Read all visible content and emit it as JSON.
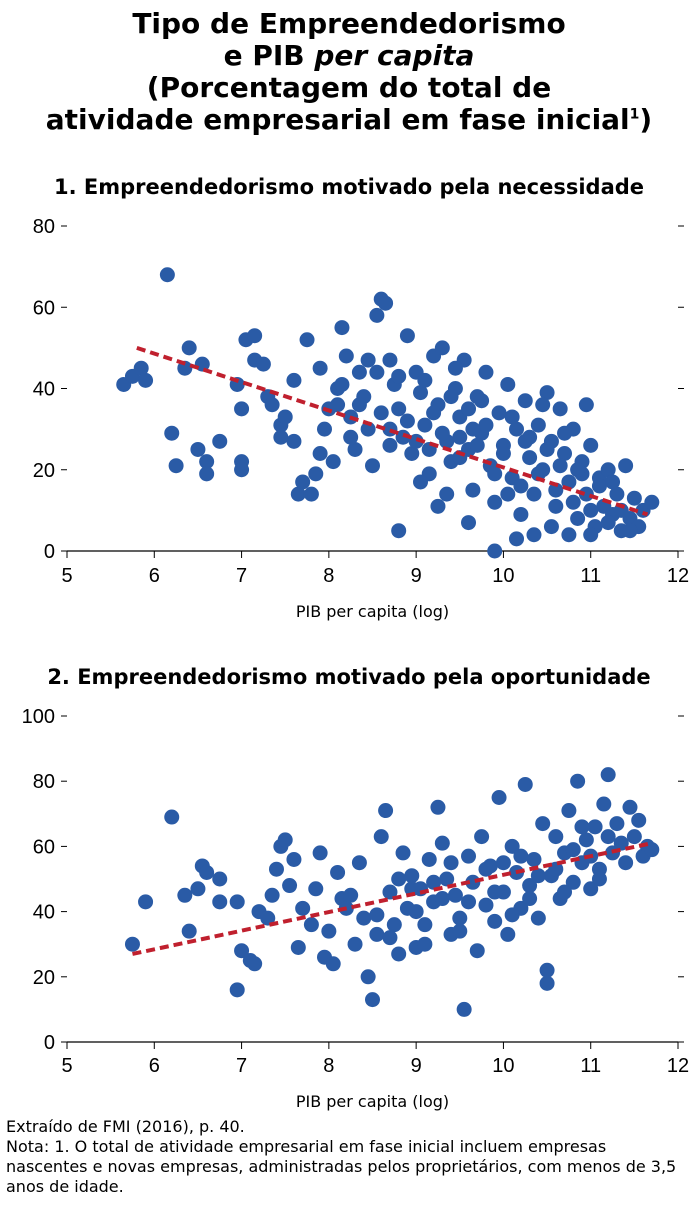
{
  "header": {
    "title_line1": "Tipo de Empreendedorismo",
    "title_line2_a": "e PIB ",
    "title_line2_b": "per capita",
    "title_line3": "(Porcentagem do total de",
    "title_line4": "atividade empresarial em fase inicial",
    "title_sup": "1",
    "title_line4_end": ")"
  },
  "footer": {
    "source": "Extraído de FMI (2016), p. 40.",
    "note": "Nota: 1. O total de atividade empresarial em fase inicial incluem empresas nascentes e novas empresas, administradas pelos proprietários, com menos de 3,5 anos de idade."
  },
  "colors": {
    "points": "#2a5ba6",
    "trend": "#c0202e"
  },
  "chart_data": [
    {
      "type": "scatter",
      "title": "1. Empreendedorismo motivado pela necessidade",
      "xlabel": "PIB per capita (log)",
      "ylabel": "",
      "xlim": [
        5,
        12
      ],
      "ylim": [
        0,
        80
      ],
      "xticks": [
        5,
        6,
        7,
        8,
        9,
        10,
        11,
        12
      ],
      "yticks": [
        0,
        20,
        40,
        60,
        80
      ],
      "trend": [
        [
          5.8,
          50
        ],
        [
          11.65,
          9
        ]
      ],
      "points": [
        [
          5.65,
          41
        ],
        [
          5.75,
          43
        ],
        [
          5.85,
          45
        ],
        [
          5.9,
          42
        ],
        [
          6.15,
          68
        ],
        [
          6.2,
          29
        ],
        [
          6.25,
          21
        ],
        [
          6.35,
          45
        ],
        [
          6.4,
          50
        ],
        [
          6.55,
          46
        ],
        [
          6.5,
          25
        ],
        [
          6.6,
          22
        ],
        [
          6.6,
          19
        ],
        [
          6.75,
          27
        ],
        [
          6.95,
          41
        ],
        [
          7.0,
          22
        ],
        [
          7.0,
          20
        ],
        [
          7.0,
          35
        ],
        [
          7.05,
          52
        ],
        [
          7.15,
          53
        ],
        [
          7.15,
          47
        ],
        [
          7.25,
          46
        ],
        [
          7.3,
          38
        ],
        [
          7.35,
          36
        ],
        [
          7.45,
          31
        ],
        [
          7.45,
          28
        ],
        [
          7.5,
          33
        ],
        [
          7.6,
          42
        ],
        [
          7.6,
          27
        ],
        [
          7.65,
          14
        ],
        [
          7.7,
          17
        ],
        [
          7.75,
          52
        ],
        [
          7.8,
          14
        ],
        [
          7.85,
          19
        ],
        [
          7.9,
          45
        ],
        [
          7.95,
          30
        ],
        [
          8.0,
          35
        ],
        [
          8.05,
          22
        ],
        [
          8.1,
          40
        ],
        [
          8.15,
          55
        ],
        [
          8.2,
          48
        ],
        [
          8.25,
          33
        ],
        [
          8.3,
          25
        ],
        [
          8.35,
          44
        ],
        [
          8.4,
          38
        ],
        [
          8.45,
          30
        ],
        [
          8.5,
          21
        ],
        [
          8.55,
          58
        ],
        [
          8.6,
          62
        ],
        [
          8.65,
          61
        ],
        [
          8.7,
          47
        ],
        [
          8.75,
          41
        ],
        [
          8.8,
          35
        ],
        [
          8.85,
          28
        ],
        [
          8.9,
          53
        ],
        [
          8.95,
          24
        ],
        [
          9.0,
          44
        ],
        [
          9.05,
          39
        ],
        [
          9.1,
          31
        ],
        [
          9.15,
          19
        ],
        [
          9.2,
          48
        ],
        [
          9.25,
          36
        ],
        [
          9.3,
          50
        ],
        [
          9.35,
          27
        ],
        [
          9.4,
          22
        ],
        [
          9.45,
          40
        ],
        [
          9.5,
          33
        ],
        [
          9.55,
          47
        ],
        [
          9.6,
          25
        ],
        [
          9.65,
          15
        ],
        [
          9.7,
          38
        ],
        [
          9.75,
          29
        ],
        [
          9.8,
          44
        ],
        [
          9.85,
          21
        ],
        [
          9.9,
          12
        ],
        [
          9.95,
          34
        ],
        [
          10.0,
          26
        ],
        [
          10.05,
          41
        ],
        [
          10.1,
          18
        ],
        [
          10.15,
          30
        ],
        [
          10.2,
          9
        ],
        [
          10.25,
          37
        ],
        [
          10.3,
          23
        ],
        [
          10.35,
          14
        ],
        [
          10.4,
          31
        ],
        [
          10.45,
          20
        ],
        [
          10.5,
          39
        ],
        [
          10.55,
          27
        ],
        [
          10.6,
          11
        ],
        [
          10.65,
          35
        ],
        [
          10.7,
          24
        ],
        [
          10.75,
          17
        ],
        [
          10.8,
          30
        ],
        [
          10.85,
          8
        ],
        [
          10.9,
          22
        ],
        [
          10.95,
          14
        ],
        [
          11.0,
          26
        ],
        [
          11.05,
          6
        ],
        [
          11.1,
          18
        ],
        [
          11.15,
          11
        ],
        [
          11.2,
          20
        ],
        [
          11.25,
          9
        ],
        [
          11.3,
          14
        ],
        [
          11.35,
          5
        ],
        [
          11.4,
          21
        ],
        [
          11.45,
          8
        ],
        [
          11.5,
          13
        ],
        [
          11.55,
          6
        ],
        [
          11.6,
          10
        ],
        [
          11.7,
          12
        ],
        [
          8.15,
          41
        ],
        [
          8.35,
          36
        ],
        [
          8.45,
          47
        ],
        [
          8.6,
          34
        ],
        [
          8.7,
          26
        ],
        [
          8.8,
          43
        ],
        [
          8.9,
          32
        ],
        [
          9.0,
          27
        ],
        [
          9.1,
          42
        ],
        [
          9.2,
          34
        ],
        [
          9.3,
          29
        ],
        [
          9.4,
          38
        ],
        [
          9.5,
          23
        ],
        [
          9.6,
          35
        ],
        [
          9.7,
          26
        ],
        [
          9.8,
          31
        ],
        [
          9.9,
          19
        ],
        [
          10.0,
          24
        ],
        [
          10.1,
          33
        ],
        [
          10.2,
          16
        ],
        [
          10.3,
          28
        ],
        [
          10.4,
          19
        ],
        [
          10.5,
          25
        ],
        [
          10.6,
          15
        ],
        [
          10.7,
          29
        ],
        [
          10.8,
          12
        ],
        [
          10.9,
          19
        ],
        [
          11.0,
          10
        ],
        [
          11.1,
          16
        ],
        [
          11.2,
          7
        ],
        [
          8.8,
          5
        ],
        [
          9.25,
          11
        ],
        [
          9.6,
          7
        ],
        [
          9.9,
          0
        ],
        [
          10.15,
          3
        ],
        [
          10.35,
          4
        ],
        [
          10.55,
          6
        ],
        [
          10.75,
          4
        ],
        [
          11.0,
          4
        ],
        [
          11.45,
          5
        ],
        [
          8.55,
          44
        ],
        [
          9.05,
          17
        ],
        [
          9.45,
          45
        ],
        [
          10.45,
          36
        ],
        [
          10.95,
          36
        ],
        [
          11.25,
          17
        ],
        [
          9.75,
          37
        ],
        [
          10.65,
          21
        ],
        [
          9.35,
          14
        ],
        [
          8.25,
          28
        ],
        [
          7.9,
          24
        ],
        [
          8.1,
          36
        ],
        [
          8.7,
          30
        ],
        [
          9.15,
          25
        ],
        [
          9.65,
          30
        ],
        [
          10.05,
          14
        ],
        [
          10.25,
          27
        ],
        [
          10.85,
          20
        ],
        [
          11.35,
          10
        ],
        [
          9.5,
          28
        ]
      ]
    },
    {
      "type": "scatter",
      "title": "2. Empreendedorismo motivado pela oportunidade",
      "xlabel": "PIB per capita (log)",
      "ylabel": "",
      "xlim": [
        5,
        12
      ],
      "ylim": [
        0,
        100
      ],
      "xticks": [
        5,
        6,
        7,
        8,
        9,
        10,
        11,
        12
      ],
      "yticks": [
        0,
        20,
        40,
        60,
        80,
        100
      ],
      "trend": [
        [
          5.75,
          27
        ],
        [
          11.7,
          61
        ]
      ],
      "points": [
        [
          5.75,
          30
        ],
        [
          5.9,
          43
        ],
        [
          6.2,
          69
        ],
        [
          6.35,
          45
        ],
        [
          6.4,
          34
        ],
        [
          6.5,
          47
        ],
        [
          6.55,
          54
        ],
        [
          6.6,
          52
        ],
        [
          6.75,
          50
        ],
        [
          6.75,
          43
        ],
        [
          6.95,
          43
        ],
        [
          6.95,
          16
        ],
        [
          7.0,
          28
        ],
        [
          7.1,
          25
        ],
        [
          7.15,
          24
        ],
        [
          7.2,
          40
        ],
        [
          7.3,
          38
        ],
        [
          7.35,
          45
        ],
        [
          7.4,
          53
        ],
        [
          7.45,
          60
        ],
        [
          7.5,
          62
        ],
        [
          7.55,
          48
        ],
        [
          7.6,
          56
        ],
        [
          7.65,
          29
        ],
        [
          7.7,
          41
        ],
        [
          7.8,
          36
        ],
        [
          7.85,
          47
        ],
        [
          7.9,
          58
        ],
        [
          7.95,
          26
        ],
        [
          8.0,
          34
        ],
        [
          8.05,
          24
        ],
        [
          8.1,
          52
        ],
        [
          8.15,
          44
        ],
        [
          8.2,
          41
        ],
        [
          8.3,
          30
        ],
        [
          8.35,
          55
        ],
        [
          8.4,
          38
        ],
        [
          8.45,
          20
        ],
        [
          8.5,
          13
        ],
        [
          8.55,
          33
        ],
        [
          8.6,
          63
        ],
        [
          8.65,
          71
        ],
        [
          8.7,
          46
        ],
        [
          8.75,
          36
        ],
        [
          8.8,
          27
        ],
        [
          8.85,
          58
        ],
        [
          8.9,
          41
        ],
        [
          8.95,
          51
        ],
        [
          9.0,
          29
        ],
        [
          9.05,
          47
        ],
        [
          9.1,
          36
        ],
        [
          9.15,
          56
        ],
        [
          9.2,
          43
        ],
        [
          9.25,
          72
        ],
        [
          9.3,
          61
        ],
        [
          9.35,
          50
        ],
        [
          9.4,
          33
        ],
        [
          9.45,
          45
        ],
        [
          9.5,
          38
        ],
        [
          9.55,
          10
        ],
        [
          9.6,
          57
        ],
        [
          9.65,
          49
        ],
        [
          9.7,
          28
        ],
        [
          9.75,
          63
        ],
        [
          9.8,
          42
        ],
        [
          9.85,
          54
        ],
        [
          9.9,
          37
        ],
        [
          9.95,
          75
        ],
        [
          10.0,
          46
        ],
        [
          10.05,
          33
        ],
        [
          10.1,
          60
        ],
        [
          10.15,
          52
        ],
        [
          10.2,
          41
        ],
        [
          10.25,
          79
        ],
        [
          10.3,
          48
        ],
        [
          10.35,
          56
        ],
        [
          10.4,
          38
        ],
        [
          10.45,
          67
        ],
        [
          10.5,
          22
        ],
        [
          10.5,
          18
        ],
        [
          10.55,
          51
        ],
        [
          10.6,
          63
        ],
        [
          10.65,
          44
        ],
        [
          10.7,
          58
        ],
        [
          10.75,
          71
        ],
        [
          10.8,
          49
        ],
        [
          10.85,
          80
        ],
        [
          10.9,
          55
        ],
        [
          10.95,
          62
        ],
        [
          11.0,
          47
        ],
        [
          11.05,
          66
        ],
        [
          11.1,
          53
        ],
        [
          11.15,
          73
        ],
        [
          11.2,
          82
        ],
        [
          11.25,
          58
        ],
        [
          11.3,
          67
        ],
        [
          11.35,
          61
        ],
        [
          11.4,
          55
        ],
        [
          11.45,
          72
        ],
        [
          11.5,
          63
        ],
        [
          11.6,
          57
        ],
        [
          11.65,
          60
        ],
        [
          11.7,
          59
        ],
        [
          11.55,
          68
        ],
        [
          8.25,
          45
        ],
        [
          8.55,
          39
        ],
        [
          8.8,
          50
        ],
        [
          9.0,
          40
        ],
        [
          9.2,
          49
        ],
        [
          9.4,
          55
        ],
        [
          9.6,
          43
        ],
        [
          9.8,
          53
        ],
        [
          10.0,
          55
        ],
        [
          10.2,
          57
        ],
        [
          10.4,
          51
        ],
        [
          10.6,
          53
        ],
        [
          10.8,
          59
        ],
        [
          11.0,
          57
        ],
        [
          11.2,
          63
        ],
        [
          8.7,
          32
        ],
        [
          9.1,
          30
        ],
        [
          9.5,
          34
        ],
        [
          9.9,
          46
        ],
        [
          10.3,
          44
        ],
        [
          10.7,
          46
        ],
        [
          11.1,
          50
        ],
        [
          9.3,
          44
        ],
        [
          8.95,
          47
        ],
        [
          10.1,
          39
        ],
        [
          10.9,
          66
        ]
      ]
    }
  ]
}
